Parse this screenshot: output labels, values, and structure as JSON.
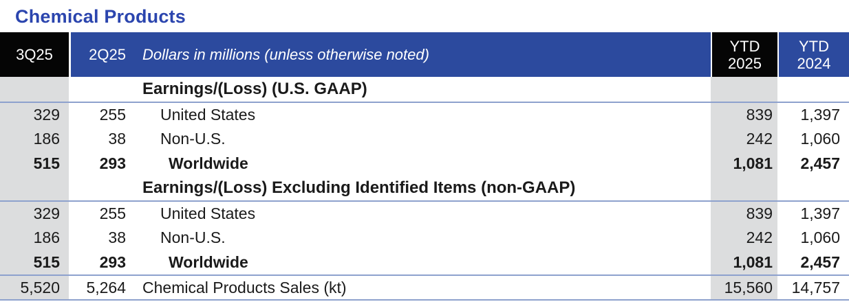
{
  "title": "Chemical Products",
  "header": {
    "col_3q25": "3Q25",
    "col_2q25": "2Q25",
    "col_desc": "Dollars in millions (unless otherwise noted)",
    "col_ytd2025": {
      "line1": "YTD",
      "line2": "2025"
    },
    "col_ytd2024": {
      "line1": "YTD",
      "line2": "2024"
    }
  },
  "sections": [
    {
      "heading": "Earnings/(Loss) (U.S. GAAP)",
      "rows": [
        {
          "q3_2025": "329",
          "q2_2025": "255",
          "label": "United States",
          "ytd_2025": "839",
          "ytd_2024": "1,397",
          "bold": false
        },
        {
          "q3_2025": "186",
          "q2_2025": "38",
          "label": "Non-U.S.",
          "ytd_2025": "242",
          "ytd_2024": "1,060",
          "bold": false
        },
        {
          "q3_2025": "515",
          "q2_2025": "293",
          "label": "Worldwide",
          "ytd_2025": "1,081",
          "ytd_2024": "2,457",
          "bold": true
        }
      ]
    },
    {
      "heading": "Earnings/(Loss) Excluding Identified Items (non-GAAP)",
      "rows": [
        {
          "q3_2025": "329",
          "q2_2025": "255",
          "label": "United States",
          "ytd_2025": "839",
          "ytd_2024": "1,397",
          "bold": false
        },
        {
          "q3_2025": "186",
          "q2_2025": "38",
          "label": "Non-U.S.",
          "ytd_2025": "242",
          "ytd_2024": "1,060",
          "bold": false
        },
        {
          "q3_2025": "515",
          "q2_2025": "293",
          "label": "Worldwide",
          "ytd_2025": "1,081",
          "ytd_2024": "2,457",
          "bold": true
        }
      ]
    }
  ],
  "footer_row": {
    "q3_2025": "5,520",
    "q2_2025": "5,264",
    "label": "Chemical Products Sales (kt)",
    "ytd_2025": "15,560",
    "ytd_2024": "14,757"
  },
  "colors": {
    "title_blue": "#2b45ae",
    "header_blue": "#2c4a9e",
    "header_black": "#050505",
    "shade_gray": "#dcddde",
    "rule_blue": "#8da1cd"
  }
}
